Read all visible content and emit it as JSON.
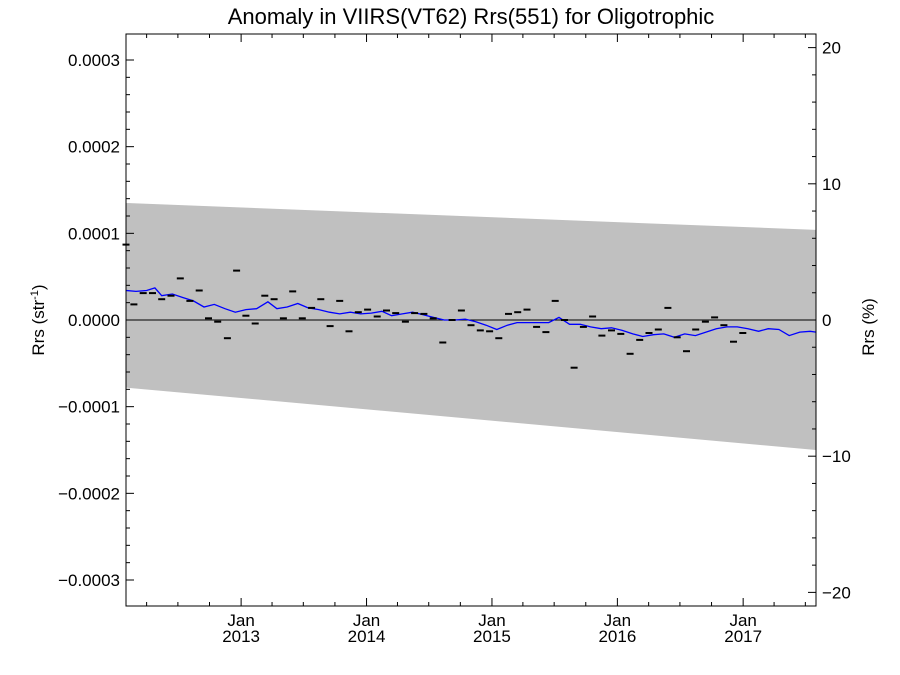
{
  "chart_data": {
    "type": "scatter",
    "title": "Anomaly in VIIRS(VT62) Rrs(551) for Oligotrophic",
    "ylabel_left": "Rrs (str",
    "ylabel_left_sup": "-1",
    "ylabel_left_close": ")",
    "ylabel_right": "Rrs (%)",
    "xlim": [
      "2012-02-01",
      "2017-08-01"
    ],
    "ylim": [
      -0.00033,
      0.00033
    ],
    "ylim_right": [
      -21,
      21
    ],
    "y_ticks": [
      {
        "value": 0.0003,
        "label": "0.0003"
      },
      {
        "value": 0.0002,
        "label": "0.0002"
      },
      {
        "value": 0.0001,
        "label": "0.0001"
      },
      {
        "value": 0.0,
        "label": "0.0000"
      },
      {
        "value": -0.0001,
        "label": "−0.0001"
      },
      {
        "value": -0.0002,
        "label": "−0.0002"
      },
      {
        "value": -0.0003,
        "label": "−0.0003"
      }
    ],
    "y_right_ticks": [
      {
        "value": 20,
        "label": "20"
      },
      {
        "value": 10,
        "label": "10"
      },
      {
        "value": 0,
        "label": "0"
      },
      {
        "value": -10,
        "label": "−10"
      },
      {
        "value": -20,
        "label": "−20"
      }
    ],
    "x_ticks": [
      {
        "date": "2013-01-01",
        "label_month": "Jan",
        "label_year": "2013"
      },
      {
        "date": "2014-01-01",
        "label_month": "Jan",
        "label_year": "2014"
      },
      {
        "date": "2015-01-01",
        "label_month": "Jan",
        "label_year": "2015"
      },
      {
        "date": "2016-01-01",
        "label_month": "Jan",
        "label_year": "2016"
      },
      {
        "date": "2017-01-01",
        "label_month": "Jan",
        "label_year": "2017"
      }
    ],
    "band": {
      "start": {
        "date": "2012-02-01",
        "upper": 0.000135,
        "lower": -7.8e-05
      },
      "end": {
        "date": "2017-08-01",
        "upper": 0.000104,
        "lower": -0.00015
      }
    },
    "colors": {
      "band": "#c0c0c0",
      "line": "#0000ff",
      "points": "#000000",
      "zero": "#000000"
    },
    "points": [
      {
        "date": "2012-02-01",
        "value": 8.7e-05
      },
      {
        "date": "2012-02-24",
        "value": 1.8e-05
      },
      {
        "date": "2012-03-22",
        "value": 3.1e-05
      },
      {
        "date": "2012-04-18",
        "value": 3.1e-05
      },
      {
        "date": "2012-05-15",
        "value": 2.4e-05
      },
      {
        "date": "2012-06-11",
        "value": 2.8e-05
      },
      {
        "date": "2012-07-08",
        "value": 4.8e-05
      },
      {
        "date": "2012-08-05",
        "value": 2.2e-05
      },
      {
        "date": "2012-09-01",
        "value": 3.4e-05
      },
      {
        "date": "2012-09-28",
        "value": 2e-06
      },
      {
        "date": "2012-10-25",
        "value": -2e-06
      },
      {
        "date": "2012-11-22",
        "value": -2.1e-05
      },
      {
        "date": "2012-12-19",
        "value": 5.7e-05
      },
      {
        "date": "2013-01-15",
        "value": 5e-06
      },
      {
        "date": "2013-02-11",
        "value": -4e-06
      },
      {
        "date": "2013-03-11",
        "value": 2.8e-05
      },
      {
        "date": "2013-04-07",
        "value": 2.4e-05
      },
      {
        "date": "2013-05-04",
        "value": 2e-06
      },
      {
        "date": "2013-05-31",
        "value": 3.3e-05
      },
      {
        "date": "2013-06-28",
        "value": 2e-06
      },
      {
        "date": "2013-07-25",
        "value": 1.4e-05
      },
      {
        "date": "2013-08-21",
        "value": 2.4e-05
      },
      {
        "date": "2013-09-17",
        "value": -7e-06
      },
      {
        "date": "2013-10-15",
        "value": 2.2e-05
      },
      {
        "date": "2013-11-11",
        "value": -1.3e-05
      },
      {
        "date": "2013-12-08",
        "value": 9e-06
      },
      {
        "date": "2014-01-04",
        "value": 1.2e-05
      },
      {
        "date": "2014-02-01",
        "value": 4e-06
      },
      {
        "date": "2014-02-28",
        "value": 1.1e-05
      },
      {
        "date": "2014-03-27",
        "value": 8e-06
      },
      {
        "date": "2014-04-24",
        "value": -2e-06
      },
      {
        "date": "2014-05-21",
        "value": 8e-06
      },
      {
        "date": "2014-06-17",
        "value": 7e-06
      },
      {
        "date": "2014-07-14",
        "value": 2e-06
      },
      {
        "date": "2014-08-11",
        "value": -2.6e-05
      },
      {
        "date": "2014-09-07",
        "value": 0.0
      },
      {
        "date": "2014-10-04",
        "value": 1.1e-05
      },
      {
        "date": "2014-11-01",
        "value": -6e-06
      },
      {
        "date": "2014-11-28",
        "value": -1.2e-05
      },
      {
        "date": "2014-12-25",
        "value": -1.3e-05
      },
      {
        "date": "2015-01-21",
        "value": -2.1e-05
      },
      {
        "date": "2015-02-18",
        "value": 7e-06
      },
      {
        "date": "2015-03-17",
        "value": 9e-06
      },
      {
        "date": "2015-04-13",
        "value": 1.2e-05
      },
      {
        "date": "2015-05-11",
        "value": -8e-06
      },
      {
        "date": "2015-06-07",
        "value": -1.4e-05
      },
      {
        "date": "2015-07-04",
        "value": 2.2e-05
      },
      {
        "date": "2015-07-31",
        "value": 0.0
      },
      {
        "date": "2015-08-28",
        "value": -5.5e-05
      },
      {
        "date": "2015-09-24",
        "value": -8e-06
      },
      {
        "date": "2015-10-21",
        "value": 4e-06
      },
      {
        "date": "2015-11-17",
        "value": -1.8e-05
      },
      {
        "date": "2015-12-15",
        "value": -1.2e-05
      },
      {
        "date": "2016-01-11",
        "value": -1.6e-05
      },
      {
        "date": "2016-02-07",
        "value": -3.9e-05
      },
      {
        "date": "2016-03-06",
        "value": -2.3e-05
      },
      {
        "date": "2016-04-02",
        "value": -1.5e-05
      },
      {
        "date": "2016-04-29",
        "value": -1.1e-05
      },
      {
        "date": "2016-05-27",
        "value": 1.4e-05
      },
      {
        "date": "2016-06-23",
        "value": -2e-05
      },
      {
        "date": "2016-07-20",
        "value": -3.6e-05
      },
      {
        "date": "2016-08-16",
        "value": -1.1e-05
      },
      {
        "date": "2016-09-13",
        "value": -2e-06
      },
      {
        "date": "2016-10-10",
        "value": 3e-06
      },
      {
        "date": "2016-11-06",
        "value": -6e-06
      },
      {
        "date": "2016-12-04",
        "value": -2.5e-05
      },
      {
        "date": "2016-12-31",
        "value": -1.5e-05
      }
    ],
    "running_mean": [
      {
        "date": "2012-02-01",
        "value": 3.4e-05
      },
      {
        "date": "2012-03-01",
        "value": 3.3e-05
      },
      {
        "date": "2012-04-01",
        "value": 3.4e-05
      },
      {
        "date": "2012-04-25",
        "value": 3.7e-05
      },
      {
        "date": "2012-05-15",
        "value": 2.8e-05
      },
      {
        "date": "2012-06-15",
        "value": 3e-05
      },
      {
        "date": "2012-07-15",
        "value": 2.6e-05
      },
      {
        "date": "2012-08-15",
        "value": 2.2e-05
      },
      {
        "date": "2012-09-15",
        "value": 1.5e-05
      },
      {
        "date": "2012-10-15",
        "value": 1.8e-05
      },
      {
        "date": "2012-11-15",
        "value": 1.3e-05
      },
      {
        "date": "2012-12-15",
        "value": 9e-06
      },
      {
        "date": "2013-01-15",
        "value": 1.2e-05
      },
      {
        "date": "2013-02-15",
        "value": 1.3e-05
      },
      {
        "date": "2013-03-20",
        "value": 2.1e-05
      },
      {
        "date": "2013-04-15",
        "value": 1.3e-05
      },
      {
        "date": "2013-05-15",
        "value": 1.5e-05
      },
      {
        "date": "2013-06-15",
        "value": 1.9e-05
      },
      {
        "date": "2013-07-15",
        "value": 1.4e-05
      },
      {
        "date": "2013-08-15",
        "value": 1.2e-05
      },
      {
        "date": "2013-09-15",
        "value": 9e-06
      },
      {
        "date": "2013-10-15",
        "value": 7e-06
      },
      {
        "date": "2013-11-15",
        "value": 9e-06
      },
      {
        "date": "2013-12-15",
        "value": 7e-06
      },
      {
        "date": "2014-01-15",
        "value": 8e-06
      },
      {
        "date": "2014-02-15",
        "value": 1e-05
      },
      {
        "date": "2014-03-15",
        "value": 5e-06
      },
      {
        "date": "2014-04-15",
        "value": 7e-06
      },
      {
        "date": "2014-05-15",
        "value": 9e-06
      },
      {
        "date": "2014-06-15",
        "value": 6e-06
      },
      {
        "date": "2014-07-15",
        "value": 3e-06
      },
      {
        "date": "2014-08-15",
        "value": 0.0
      },
      {
        "date": "2014-09-15",
        "value": 0.0
      },
      {
        "date": "2014-10-15",
        "value": 1e-06
      },
      {
        "date": "2014-11-15",
        "value": -2e-06
      },
      {
        "date": "2014-12-15",
        "value": -6e-06
      },
      {
        "date": "2015-01-15",
        "value": -1.1e-05
      },
      {
        "date": "2015-02-15",
        "value": -6e-06
      },
      {
        "date": "2015-03-15",
        "value": -3e-06
      },
      {
        "date": "2015-04-15",
        "value": -3e-06
      },
      {
        "date": "2015-05-15",
        "value": -3e-06
      },
      {
        "date": "2015-06-15",
        "value": -3e-06
      },
      {
        "date": "2015-07-15",
        "value": 3e-06
      },
      {
        "date": "2015-08-15",
        "value": -5e-06
      },
      {
        "date": "2015-09-15",
        "value": -5e-06
      },
      {
        "date": "2015-10-15",
        "value": -8e-06
      },
      {
        "date": "2015-11-15",
        "value": -1e-05
      },
      {
        "date": "2015-12-15",
        "value": -9e-06
      },
      {
        "date": "2016-01-15",
        "value": -1.2e-05
      },
      {
        "date": "2016-02-15",
        "value": -1.6e-05
      },
      {
        "date": "2016-03-15",
        "value": -1.9e-05
      },
      {
        "date": "2016-04-15",
        "value": -1.7e-05
      },
      {
        "date": "2016-05-15",
        "value": -1.6e-05
      },
      {
        "date": "2016-06-15",
        "value": -2e-05
      },
      {
        "date": "2016-07-15",
        "value": -1.6e-05
      },
      {
        "date": "2016-08-15",
        "value": -1.8e-05
      },
      {
        "date": "2016-09-15",
        "value": -1.4e-05
      },
      {
        "date": "2016-10-15",
        "value": -1e-05
      },
      {
        "date": "2016-11-15",
        "value": -8e-06
      },
      {
        "date": "2016-12-15",
        "value": -8e-06
      },
      {
        "date": "2017-01-15",
        "value": -1e-05
      },
      {
        "date": "2017-02-15",
        "value": -1.3e-05
      },
      {
        "date": "2017-03-15",
        "value": -1e-05
      },
      {
        "date": "2017-04-15",
        "value": -1.1e-05
      },
      {
        "date": "2017-05-15",
        "value": -1.8e-05
      },
      {
        "date": "2017-06-15",
        "value": -1.4e-05
      },
      {
        "date": "2017-07-15",
        "value": -1.3e-05
      },
      {
        "date": "2017-08-01",
        "value": -1.4e-05
      }
    ]
  }
}
